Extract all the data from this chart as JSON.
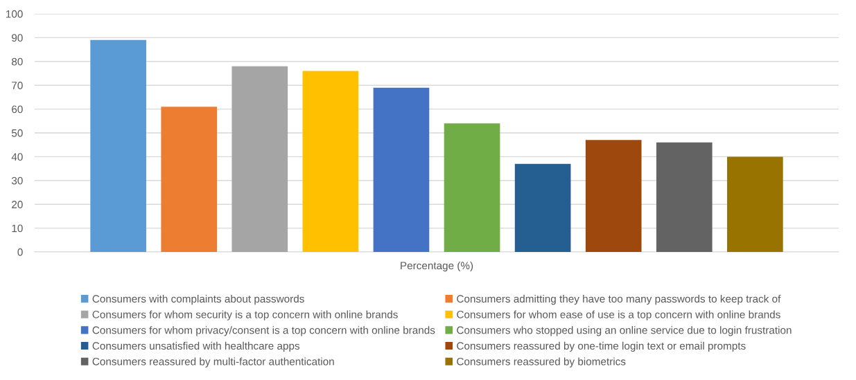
{
  "chart_data": {
    "type": "bar",
    "categories": [
      "Percentage (%)"
    ],
    "series": [
      {
        "name": "Consumers with complaints about passwords",
        "color": "#5b9bd5",
        "values": [
          89
        ]
      },
      {
        "name": "Consumers admitting they have too many passwords to keep track of",
        "color": "#ed7d31",
        "values": [
          61
        ]
      },
      {
        "name": "Consumers for whom security is a top concern with online brands",
        "color": "#a5a5a5",
        "values": [
          78
        ]
      },
      {
        "name": "Consumers for whom ease of use is a top concern with online brands",
        "color": "#ffc000",
        "values": [
          76
        ]
      },
      {
        "name": "Consumers for whom privacy/consent is a top concern with online brands",
        "color": "#4472c4",
        "values": [
          69
        ]
      },
      {
        "name": "Consumers who stopped using an online service due to login frustration",
        "color": "#70ad47",
        "values": [
          54
        ]
      },
      {
        "name": "Consumers unsatisfied with healthcare apps",
        "color": "#255e91",
        "values": [
          37
        ]
      },
      {
        "name": "Consumers reassured by one-time login text or email prompts",
        "color": "#9e480e",
        "values": [
          47
        ]
      },
      {
        "name": "Consumers reassured by multi-factor authentication",
        "color": "#636363",
        "values": [
          46
        ]
      },
      {
        "name": "Consumers reassured by biometrics",
        "color": "#997300",
        "values": [
          40
        ]
      }
    ],
    "ylim": [
      0,
      100
    ],
    "yticks": [
      0,
      10,
      20,
      30,
      40,
      50,
      60,
      70,
      80,
      90,
      100
    ],
    "grid": "y",
    "legend": "bottom"
  }
}
